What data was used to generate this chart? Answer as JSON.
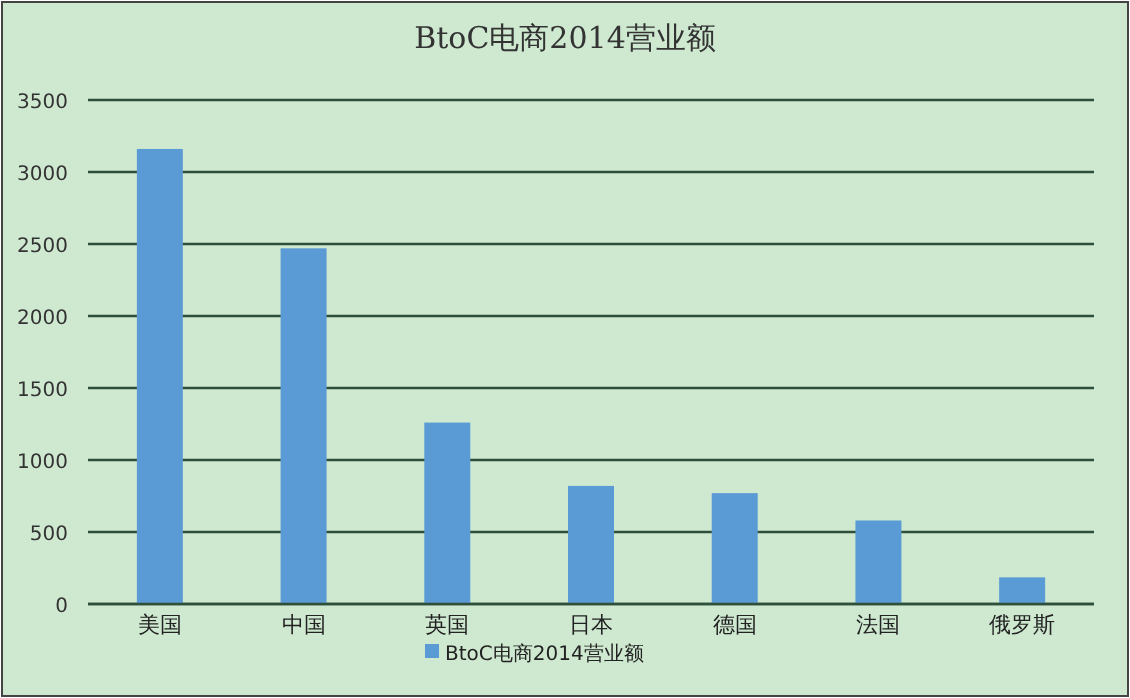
{
  "chart_data": {
    "type": "bar",
    "title": "BtoC电商2014营业额",
    "categories": [
      "美国",
      "中国",
      "英国",
      "日本",
      "德国",
      "法国",
      "俄罗斯"
    ],
    "series": [
      {
        "name": "BtoC电商2014营业额",
        "color": "#5b9bd5",
        "values": [
          3160,
          2470,
          1260,
          820,
          770,
          580,
          185
        ]
      }
    ],
    "ylim": [
      0,
      3500
    ],
    "yticks": [
      0,
      500,
      1000,
      1500,
      2000,
      2500,
      3000,
      3500
    ],
    "grid": "y",
    "legend": "bottom"
  }
}
